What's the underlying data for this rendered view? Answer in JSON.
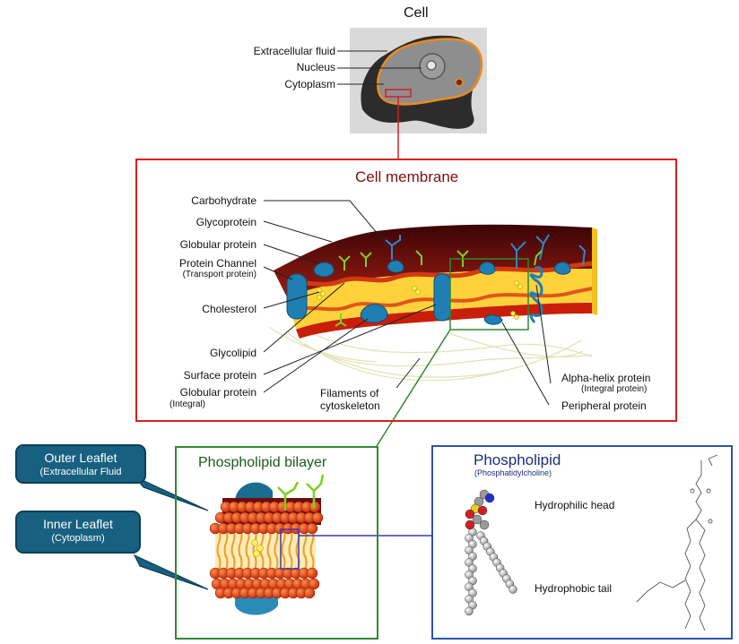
{
  "cell": {
    "title": "Cell",
    "labels": {
      "extracellular": "Extracellular fluid",
      "nucleus": "Nucleus",
      "cytoplasm": "Cytoplasm"
    }
  },
  "membrane": {
    "title": "Cell membrane",
    "left_labels": {
      "carbohydrate": "Carbohydrate",
      "glycoprotein": "Glycoprotein",
      "globular": "Globular protein",
      "channel": "Protein Channel",
      "channel_sub": "(Transport protein)",
      "cholesterol": "Cholesterol",
      "glycolipid": "Glycolipid",
      "surface": "Surface protein",
      "globular_int": "Globular protein",
      "globular_int_sub": "(Integral)"
    },
    "bottom_labels": {
      "filaments_1": "Filaments of",
      "filaments_2": "cytoskeleton"
    },
    "right_labels": {
      "alpha": "Alpha-helix protein",
      "alpha_sub": "(Integral protein)",
      "peripheral": "Peripheral protein"
    }
  },
  "bilayer": {
    "title": "Phospholipid bilayer",
    "outer_callout_1": "Outer Leaflet",
    "outer_callout_2": "(Extracellular Fluid",
    "inner_callout_1": "Inner Leaflet",
    "inner_callout_2": "(Cytoplasm)"
  },
  "phospholipid": {
    "title": "Phospholipid",
    "subtitle": "(Phosphatidylcholine)",
    "head": "Hydrophilic head",
    "tail": "Hydrophobic tail"
  },
  "colors": {
    "red_box": "#d62020",
    "green_box": "#2e8b2e",
    "blue_box": "#2a55a8",
    "membrane_title": "#7a1010",
    "callout_fill": "#17607f",
    "protein": "#1f7fb3",
    "lipid_yellow": "#ffd23c",
    "lipid_red": "#c81e0a"
  }
}
